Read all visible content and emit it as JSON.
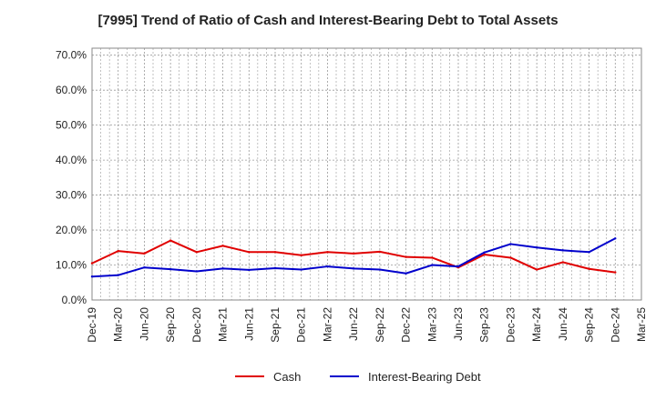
{
  "chart_data": {
    "type": "line",
    "title": "[7995]  Trend of Ratio of Cash and Interest-Bearing Debt to Total Assets",
    "xlabel": "",
    "ylabel": "",
    "x_ticks": [
      "Dec-19",
      "Mar-20",
      "Jun-20",
      "Sep-20",
      "Dec-20",
      "Mar-21",
      "Jun-21",
      "Sep-21",
      "Dec-21",
      "Mar-22",
      "Jun-22",
      "Sep-22",
      "Dec-22",
      "Mar-23",
      "Jun-23",
      "Sep-23",
      "Dec-23",
      "Mar-24",
      "Jun-24",
      "Sep-24",
      "Dec-24",
      "Mar-25"
    ],
    "y_ticks": [
      "0.0%",
      "10.0%",
      "20.0%",
      "30.0%",
      "40.0%",
      "50.0%",
      "60.0%",
      "70.0%"
    ],
    "ylim": [
      0,
      72
    ],
    "grid": true,
    "legend_position": "bottom",
    "x": [
      "Dec-19",
      "Mar-20",
      "Jun-20",
      "Sep-20",
      "Dec-20",
      "Mar-21",
      "Jun-21",
      "Sep-21",
      "Dec-21",
      "Mar-22",
      "Jun-22",
      "Sep-22",
      "Dec-22",
      "Mar-23",
      "Jun-23",
      "Sep-23",
      "Dec-23",
      "Mar-24",
      "Jun-24",
      "Sep-24",
      "Dec-24"
    ],
    "series": [
      {
        "name": "Cash",
        "color": "#e00000",
        "values": [
          10.5,
          14.0,
          13.3,
          17.0,
          13.7,
          15.5,
          13.7,
          13.7,
          12.8,
          13.7,
          13.3,
          13.8,
          12.3,
          12.1,
          9.3,
          13.0,
          12.1,
          8.7,
          10.8,
          8.9,
          7.9
        ]
      },
      {
        "name": "Interest-Bearing Debt",
        "color": "#0000cc",
        "values": [
          6.7,
          7.1,
          9.3,
          8.8,
          8.2,
          9.0,
          8.6,
          9.1,
          8.7,
          9.6,
          9.0,
          8.7,
          7.6,
          10.0,
          9.6,
          13.6,
          16.0,
          15.0,
          14.2,
          13.7,
          17.6
        ]
      }
    ]
  }
}
